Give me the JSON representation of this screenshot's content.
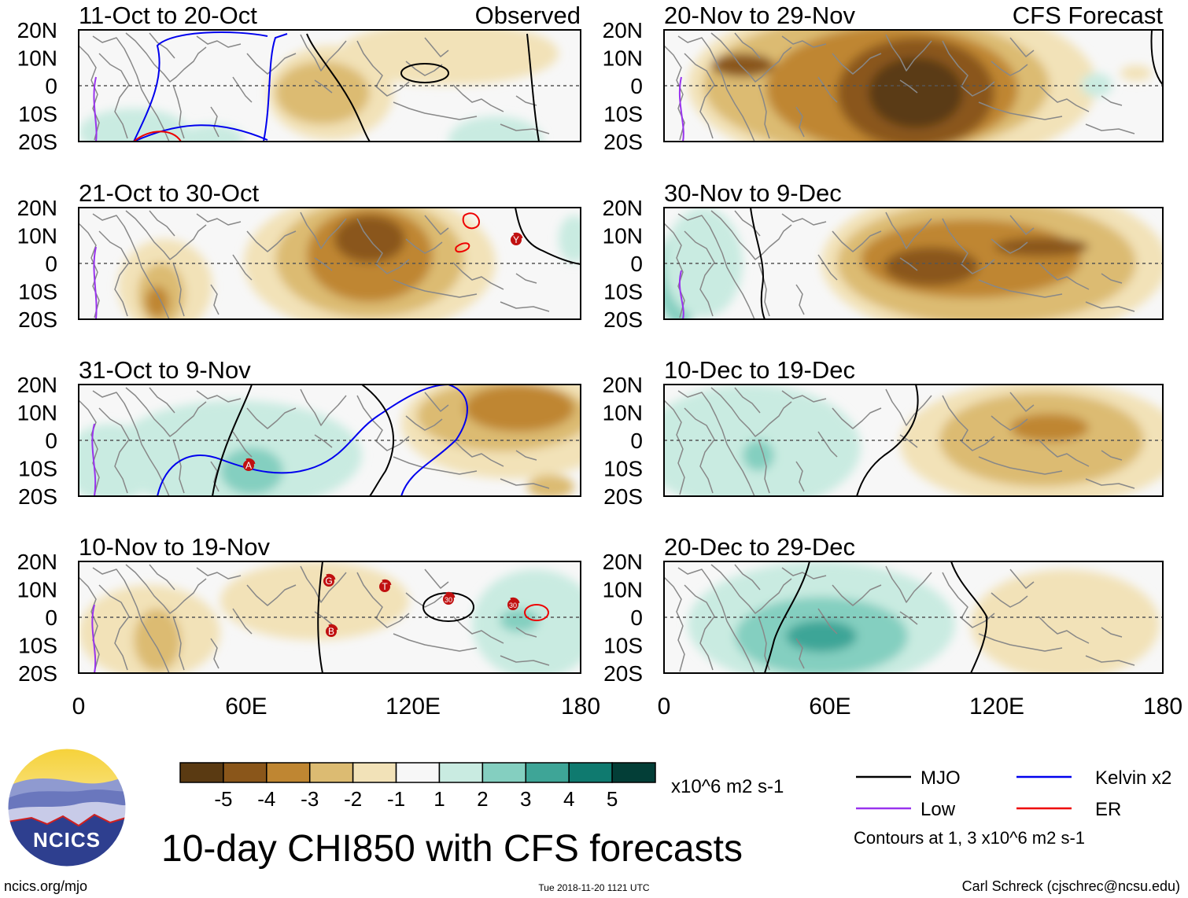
{
  "title": "10-day CHI850 with CFS forecasts",
  "observed_label": "Observed",
  "forecast_label": "CFS Forecast",
  "units": "x10^6 m2 s-1",
  "lat_labels": [
    "20N",
    "10N",
    "0",
    "10S",
    "20S"
  ],
  "lon_labels": [
    "0",
    "60E",
    "120E",
    "180"
  ],
  "panels": [
    {
      "period": "11-Oct to 20-Oct",
      "column": "observed"
    },
    {
      "period": "21-Oct to 30-Oct",
      "column": "observed"
    },
    {
      "period": "31-Oct to 9-Nov",
      "column": "observed"
    },
    {
      "period": "10-Nov to 19-Nov",
      "column": "observed"
    },
    {
      "period": "20-Nov to 29-Nov",
      "column": "forecast"
    },
    {
      "period": "30-Nov to 9-Dec",
      "column": "forecast"
    },
    {
      "period": "10-Dec to 19-Dec",
      "column": "forecast"
    },
    {
      "period": "20-Dec to 29-Dec",
      "column": "forecast"
    }
  ],
  "colorbar": {
    "labels": [
      "-5",
      "-4",
      "-3",
      "-2",
      "-1",
      "1",
      "2",
      "3",
      "4",
      "5"
    ],
    "colors": [
      "#5a3a12",
      "#8a561a",
      "#bf8632",
      "#dcbb72",
      "#f2e2b8",
      "#f7f7f7",
      "#c9ebe1",
      "#84cfc0",
      "#3ea597",
      "#0f7a6f",
      "#033e37"
    ]
  },
  "legend": {
    "items": [
      {
        "label": "MJO",
        "color": "#000000"
      },
      {
        "label": "Kelvin x2",
        "color": "#0000ee"
      },
      {
        "label": "Low",
        "color": "#9933ee"
      },
      {
        "label": "ER",
        "color": "#ee0000"
      }
    ],
    "note": "Contours at 1, 3 x10^6 m2 s-1"
  },
  "storm_markers": [
    "Y",
    "A",
    "G",
    "T",
    "30",
    "B",
    "30"
  ],
  "logo_text": "NCICS",
  "footer": {
    "left": "ncics.org/mjo",
    "center": "Tue 2018-11-20 1121 UTC",
    "right": "Carl Schreck (cjschrec@ncsu.edu)"
  }
}
